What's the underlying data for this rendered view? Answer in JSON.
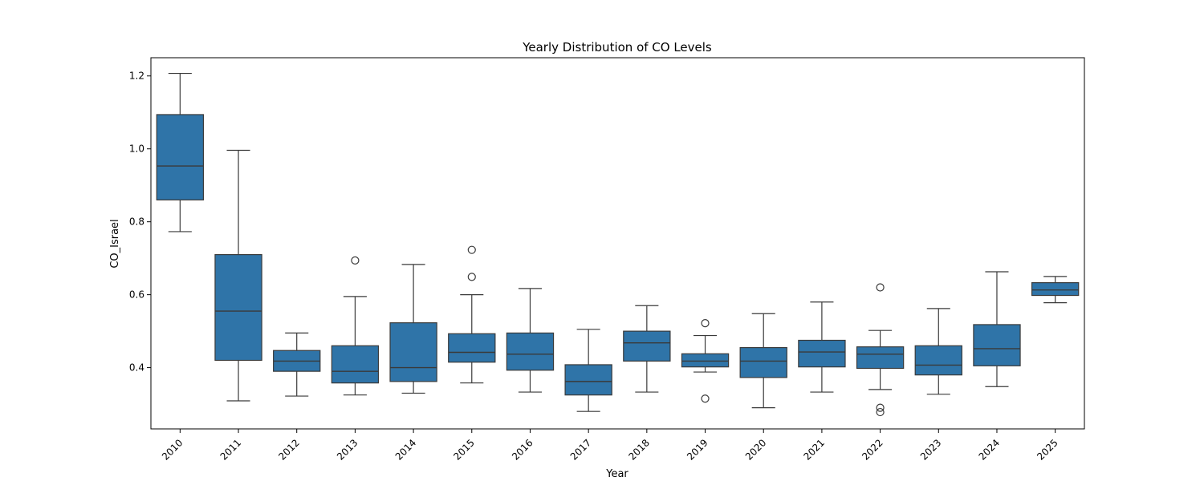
{
  "chart_data": {
    "type": "box",
    "title": "Yearly Distribution of CO Levels",
    "xlabel": "Year",
    "ylabel": "CO_Israel",
    "ylim": [
      0.232,
      1.25
    ],
    "yticks": [
      "0.4",
      "0.6",
      "0.8",
      "1.0",
      "1.2"
    ],
    "ytick_values": [
      0.4,
      0.6,
      0.8,
      1.0,
      1.2
    ],
    "box_color": "#2f74a8",
    "line_color": "#3a3a3a",
    "grid": false,
    "categories": [
      "2010",
      "2011",
      "2012",
      "2013",
      "2014",
      "2015",
      "2016",
      "2017",
      "2018",
      "2019",
      "2020",
      "2021",
      "2022",
      "2023",
      "2024",
      "2025"
    ],
    "boxes": [
      {
        "min": 0.773,
        "q1": 0.86,
        "median": 0.953,
        "q3": 1.094,
        "max": 1.207,
        "outliers": []
      },
      {
        "min": 0.309,
        "q1": 0.42,
        "median": 0.555,
        "q3": 0.71,
        "max": 0.996,
        "outliers": []
      },
      {
        "min": 0.322,
        "q1": 0.39,
        "median": 0.418,
        "q3": 0.447,
        "max": 0.495,
        "outliers": []
      },
      {
        "min": 0.325,
        "q1": 0.358,
        "median": 0.39,
        "q3": 0.46,
        "max": 0.595,
        "outliers": [
          0.694
        ]
      },
      {
        "min": 0.33,
        "q1": 0.362,
        "median": 0.4,
        "q3": 0.523,
        "max": 0.683,
        "outliers": []
      },
      {
        "min": 0.358,
        "q1": 0.415,
        "median": 0.442,
        "q3": 0.493,
        "max": 0.6,
        "outliers": [
          0.649,
          0.723
        ]
      },
      {
        "min": 0.333,
        "q1": 0.393,
        "median": 0.437,
        "q3": 0.495,
        "max": 0.617,
        "outliers": []
      },
      {
        "min": 0.28,
        "q1": 0.325,
        "median": 0.362,
        "q3": 0.408,
        "max": 0.505,
        "outliers": []
      },
      {
        "min": 0.333,
        "q1": 0.418,
        "median": 0.468,
        "q3": 0.5,
        "max": 0.57,
        "outliers": []
      },
      {
        "min": 0.388,
        "q1": 0.402,
        "median": 0.418,
        "q3": 0.438,
        "max": 0.488,
        "outliers": [
          0.522,
          0.315
        ]
      },
      {
        "min": 0.29,
        "q1": 0.373,
        "median": 0.418,
        "q3": 0.455,
        "max": 0.548,
        "outliers": []
      },
      {
        "min": 0.333,
        "q1": 0.402,
        "median": 0.443,
        "q3": 0.475,
        "max": 0.58,
        "outliers": []
      },
      {
        "min": 0.34,
        "q1": 0.398,
        "median": 0.437,
        "q3": 0.457,
        "max": 0.502,
        "outliers": [
          0.62,
          0.29,
          0.278
        ]
      },
      {
        "min": 0.327,
        "q1": 0.38,
        "median": 0.407,
        "q3": 0.46,
        "max": 0.562,
        "outliers": []
      },
      {
        "min": 0.348,
        "q1": 0.405,
        "median": 0.452,
        "q3": 0.518,
        "max": 0.663,
        "outliers": []
      },
      {
        "min": 0.578,
        "q1": 0.598,
        "median": 0.613,
        "q3": 0.633,
        "max": 0.65,
        "outliers": []
      }
    ]
  }
}
